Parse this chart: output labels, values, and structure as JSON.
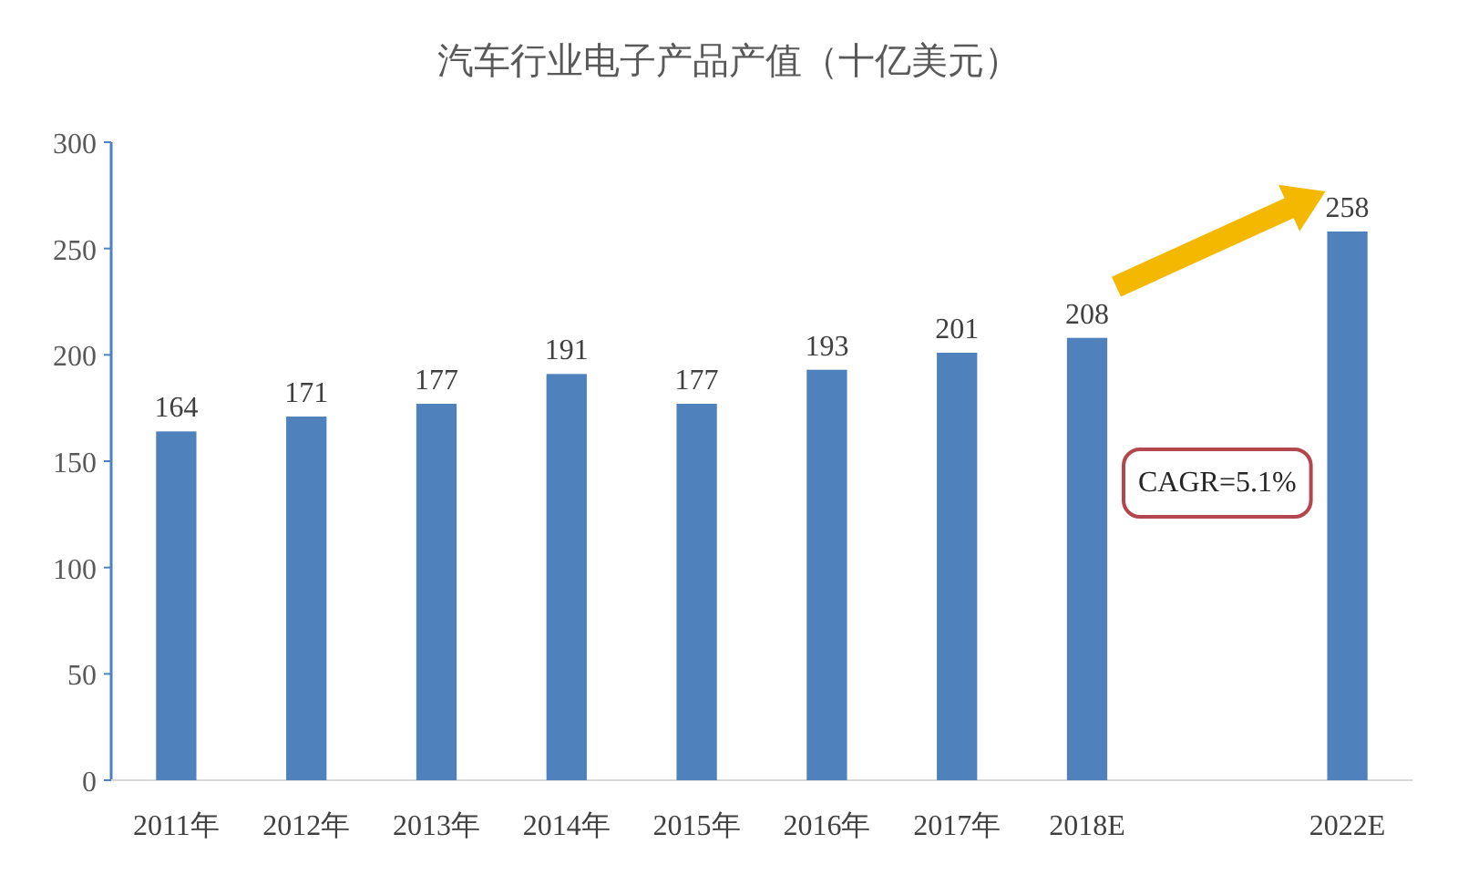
{
  "chart_data": {
    "type": "bar",
    "title": "汽车行业电子产品产值（十亿美元）",
    "categories": [
      "2011年",
      "2012年",
      "2013年",
      "2014年",
      "2015年",
      "2016年",
      "2017年",
      "2018E",
      null,
      "2022E"
    ],
    "values": [
      164,
      171,
      177,
      191,
      177,
      193,
      201,
      208,
      null,
      258
    ],
    "color": "#4f81bd",
    "data_labels": true,
    "ylim": [
      0,
      300
    ],
    "yticks": [
      0,
      50,
      100,
      150,
      200,
      250,
      300
    ],
    "grid": false,
    "annotations": [
      "CAGR=5.1%"
    ]
  }
}
